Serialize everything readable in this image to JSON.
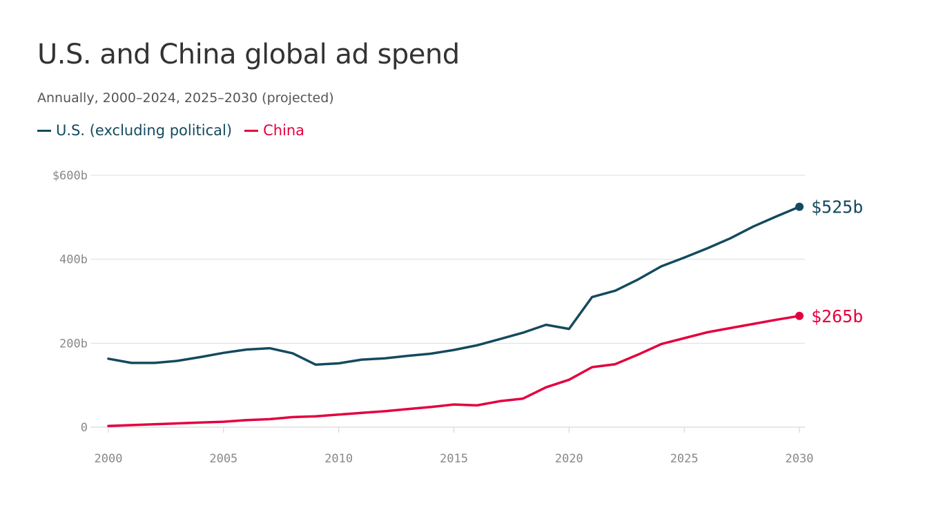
{
  "title": "U.S. and China global ad spend",
  "subtitle": "Annually, 2000–2024, 2025–2030 (projected)",
  "legend": [
    {
      "label": "U.S. (excluding political)",
      "color": "#134a5e"
    },
    {
      "label": "China",
      "color": "#e3003f"
    }
  ],
  "chart_data": {
    "type": "line",
    "title": "U.S. and China global ad spend",
    "subtitle": "Annually, 2000–2024, 2025–2030 (projected)",
    "xlabel": "",
    "ylabel": "",
    "xlim": [
      2000,
      2030
    ],
    "ylim": [
      0,
      600
    ],
    "x_ticks": [
      2000,
      2005,
      2010,
      2015,
      2020,
      2025,
      2030
    ],
    "x_tick_labels": [
      "2000",
      "2005",
      "2010",
      "2015",
      "2020",
      "2025",
      "2030"
    ],
    "y_ticks": [
      0,
      200,
      400,
      600
    ],
    "y_tick_labels": [
      "0",
      "200b",
      "400b",
      "$600b"
    ],
    "grid": "horizontal",
    "legend_position": "top-left",
    "x": [
      2000,
      2001,
      2002,
      2003,
      2004,
      2005,
      2006,
      2007,
      2008,
      2009,
      2010,
      2011,
      2012,
      2013,
      2014,
      2015,
      2016,
      2017,
      2018,
      2019,
      2020,
      2021,
      2022,
      2023,
      2024,
      2025,
      2026,
      2027,
      2028,
      2029,
      2030
    ],
    "series": [
      {
        "name": "U.S. (excluding political)",
        "color": "#134a5e",
        "values": [
          163,
          153,
          153,
          158,
          167,
          177,
          185,
          188,
          176,
          149,
          152,
          161,
          164,
          170,
          175,
          184,
          195,
          210,
          225,
          244,
          234,
          310,
          325,
          352,
          383,
          404,
          426,
          450,
          478,
          502,
          525
        ],
        "end_label": "$525b"
      },
      {
        "name": "China",
        "color": "#e3003f",
        "values": [
          3,
          5,
          7,
          9,
          11,
          13,
          17,
          19,
          24,
          26,
          30,
          34,
          38,
          43,
          48,
          54,
          52,
          62,
          68,
          95,
          113,
          143,
          150,
          173,
          198,
          212,
          226,
          236,
          246,
          256,
          265
        ],
        "end_label": "$265b"
      }
    ]
  }
}
